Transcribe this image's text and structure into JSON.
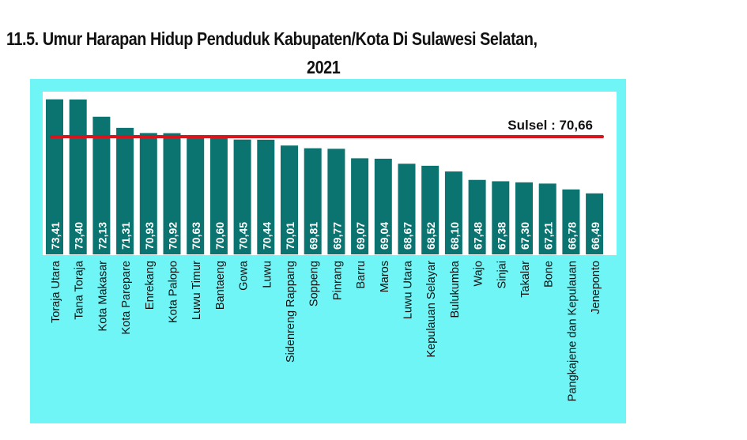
{
  "chart_data": {
    "type": "bar",
    "title": "11.5. Umur Harapan Hidup Penduduk Kabupaten/Kota Di Sulawesi Selatan,",
    "title_line2": "2021",
    "xlabel": "",
    "ylabel": "",
    "ylim": [
      62,
      74
    ],
    "grid": false,
    "categories": [
      "Toraja Utara",
      "Tana Toraja",
      "Kota Makasar",
      "Kota Parepare",
      "Enrekang",
      "Kota Palopo",
      "Luwu Timur",
      "Bantaeng",
      "Gowa",
      "Luwu",
      "Sidenreng Rappang",
      "Soppeng",
      "Pinrang",
      "Barru",
      "Maros",
      "Luwu Utara",
      "Kepulauan Selayar",
      "Bulukumba",
      "Wajo",
      "Sinjai",
      "Takalar",
      "Bone",
      "Pangkajene dan Kepulauan",
      "Jeneponto"
    ],
    "values": [
      73.41,
      73.4,
      72.13,
      71.31,
      70.93,
      70.92,
      70.63,
      70.6,
      70.45,
      70.44,
      70.01,
      69.81,
      69.77,
      69.07,
      69.04,
      68.67,
      68.52,
      68.1,
      67.48,
      67.38,
      67.3,
      67.21,
      66.78,
      66.49
    ],
    "value_labels": [
      "73,41",
      "73,40",
      "72,13",
      "71,31",
      "70,93",
      "70,92",
      "70,63",
      "70,60",
      "70,45",
      "70,44",
      "70,01",
      "69,81",
      "69,77",
      "69,07",
      "69,04",
      "68,67",
      "68,52",
      "68,10",
      "67,48",
      "67,38",
      "67,30",
      "67,21",
      "66,78",
      "66,49"
    ],
    "reference_line": {
      "label": "Sulsel : 70,66",
      "value": 70.66
    },
    "colors": {
      "bar": "#0b7370",
      "panel": "#6ff5f5",
      "line": "#d8141c"
    }
  }
}
